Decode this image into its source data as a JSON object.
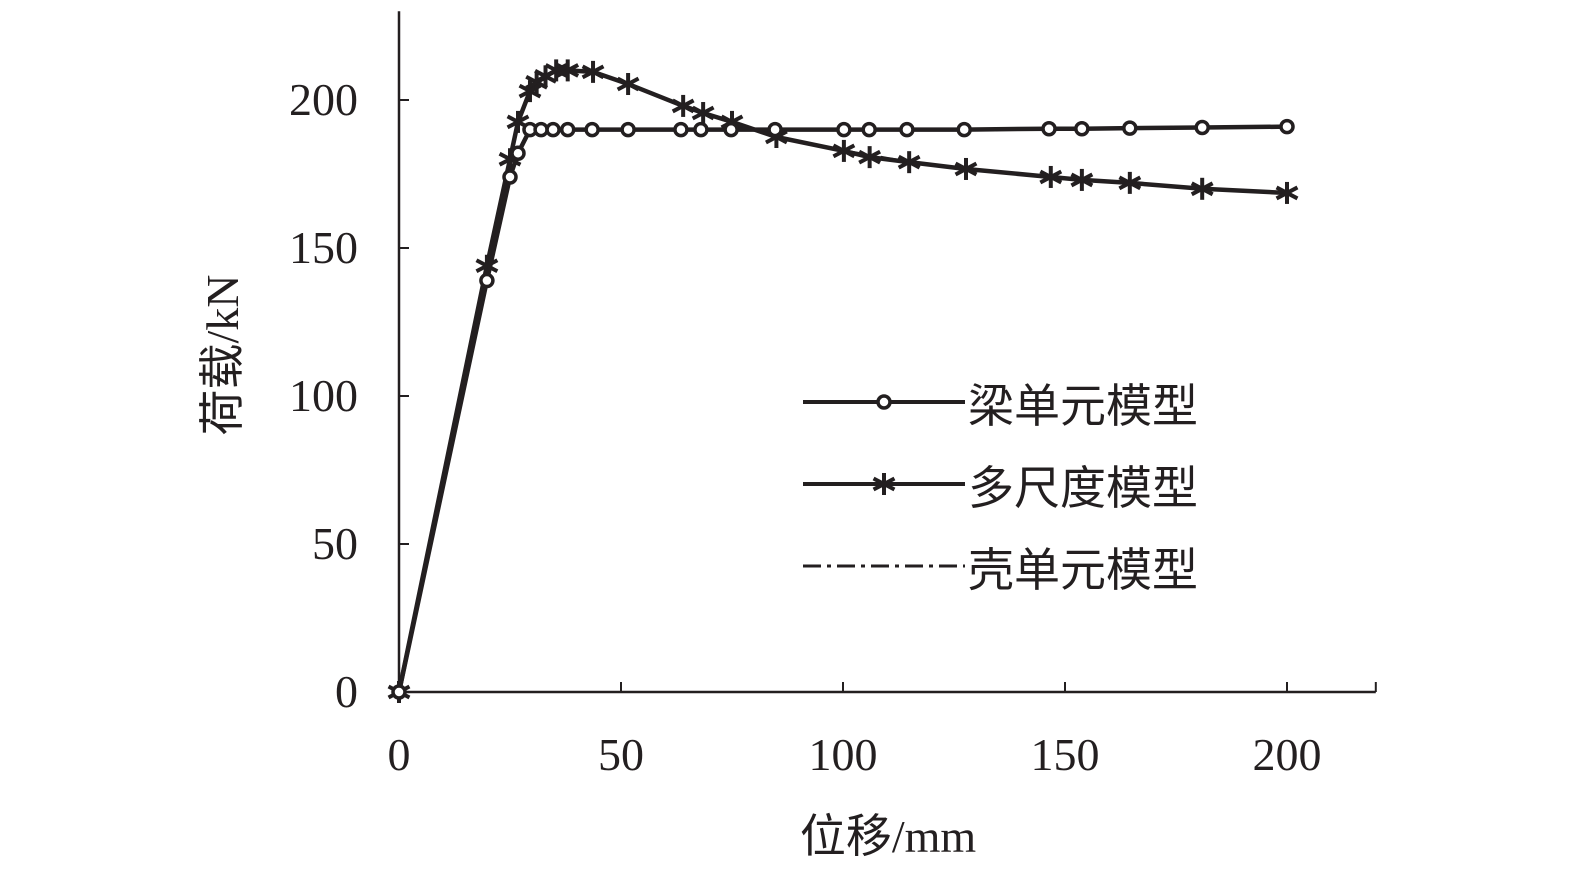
{
  "chart_data": {
    "type": "line",
    "xlabel": "位移/mm",
    "ylabel": "荷载/kN",
    "xlim": [
      0,
      220
    ],
    "ylim": [
      0,
      230
    ],
    "xticks": [
      "0",
      "50",
      "100",
      "150",
      "200"
    ],
    "yticks": [
      "0",
      "50",
      "100",
      "150",
      "200"
    ],
    "grid": false,
    "legend_position": "right-center",
    "series": [
      {
        "name": "梁单元模型",
        "marker": "circle",
        "line": "solid",
        "x": [
          0,
          19.8,
          25,
          26.8,
          29.5,
          32,
          34.7,
          38,
          43.5,
          51.6,
          63.5,
          68,
          74.8,
          84.7,
          100.2,
          105.9,
          114.4,
          127.3,
          146.4,
          153.8,
          164.6,
          180.9,
          200
        ],
        "y": [
          0,
          139,
          174,
          182,
          190,
          190,
          190,
          190,
          190,
          190,
          190,
          190,
          190,
          190,
          190,
          190,
          190,
          190,
          190.3,
          190.3,
          190.5,
          190.7,
          191
        ]
      },
      {
        "name": "多尺度模型",
        "marker": "star",
        "line": "solid",
        "x": [
          0,
          19.8,
          25,
          26.8,
          29.5,
          31,
          33,
          35.4,
          38,
          43.7,
          51.6,
          64,
          68.5,
          75,
          85,
          100.2,
          106,
          114.9,
          127.7,
          146.8,
          153.8,
          164.6,
          180.9,
          200
        ],
        "y": [
          0,
          144,
          180,
          192.6,
          203,
          206,
          208,
          210,
          210,
          209.5,
          205.4,
          198,
          195.6,
          192.6,
          187.5,
          182.8,
          180.7,
          179,
          176.7,
          174,
          173,
          172,
          170,
          168.6
        ]
      },
      {
        "name": "壳单元模型",
        "marker": "none",
        "line": "dash-dot",
        "x": [
          0,
          19.8,
          25,
          26.8,
          29.5,
          33,
          38,
          43.7,
          51.6,
          64,
          75,
          85,
          100.2,
          114.9,
          127.7,
          146.8,
          164.6,
          180.9,
          200
        ],
        "y": [
          0,
          144,
          180,
          192.6,
          203,
          208,
          210,
          209.5,
          205.4,
          198,
          192.6,
          187.5,
          182.8,
          179,
          176.7,
          174,
          172,
          170,
          168.6
        ]
      }
    ]
  }
}
